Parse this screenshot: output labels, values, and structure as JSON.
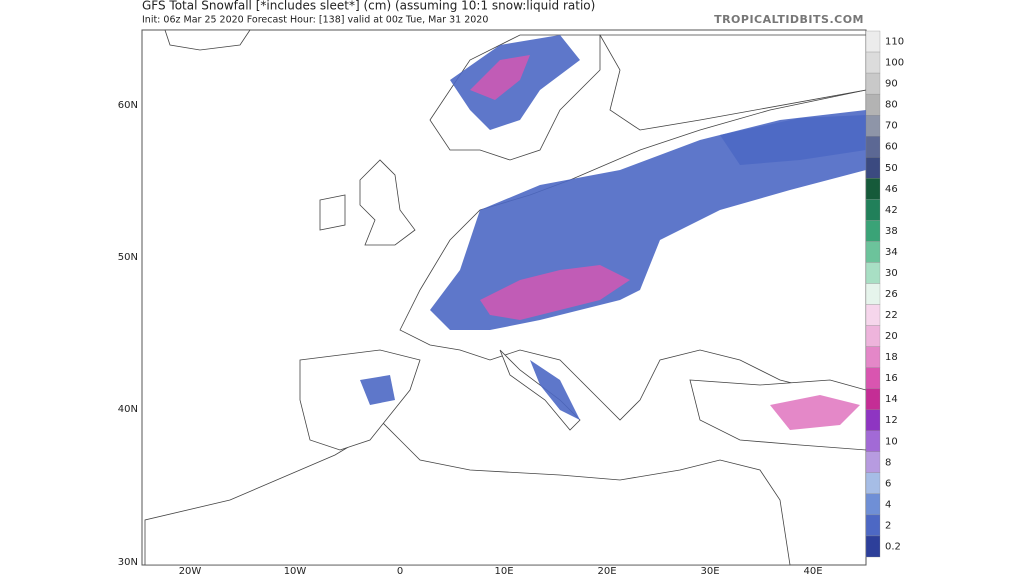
{
  "header": {
    "title": "GFS Total Snowfall [*includes sleet*] (cm) (assuming 10:1 snow:liquid ratio)",
    "subtitle": "Init: 06z Mar 25 2020   Forecast Hour: [138]   valid at 00z Tue, Mar 31 2020",
    "brand": "TROPICALTIDBITS.COM"
  },
  "map": {
    "lat_labels": [
      "60N",
      "50N",
      "40N",
      "30N"
    ],
    "lon_labels": [
      "20W",
      "10W",
      "0",
      "10E",
      "20E",
      "30E",
      "40E"
    ]
  },
  "colorbar": {
    "levels": [
      {
        "value": 110,
        "color": "#ececec"
      },
      {
        "value": 100,
        "color": "#dcdcdc"
      },
      {
        "value": 90,
        "color": "#c9c9c9"
      },
      {
        "value": 80,
        "color": "#b3b3b3"
      },
      {
        "value": 70,
        "color": "#8e95a8"
      },
      {
        "value": 60,
        "color": "#5c6894"
      },
      {
        "value": 50,
        "color": "#3b4a80"
      },
      {
        "value": 46,
        "color": "#165a3a"
      },
      {
        "value": 42,
        "color": "#21805a"
      },
      {
        "value": 38,
        "color": "#3aa377"
      },
      {
        "value": 34,
        "color": "#6cc39b"
      },
      {
        "value": 30,
        "color": "#a8dfc4"
      },
      {
        "value": 26,
        "color": "#e6f4ec"
      },
      {
        "value": 22,
        "color": "#f6d6ec"
      },
      {
        "value": 20,
        "color": "#eeb4dc"
      },
      {
        "value": 18,
        "color": "#e487c8"
      },
      {
        "value": 16,
        "color": "#d955b0"
      },
      {
        "value": 14,
        "color": "#c42d95"
      },
      {
        "value": 12,
        "color": "#8e35c2"
      },
      {
        "value": 10,
        "color": "#a26ad6"
      },
      {
        "value": 8,
        "color": "#b79be0"
      },
      {
        "value": 6,
        "color": "#a6bde6"
      },
      {
        "value": 4,
        "color": "#6f8fd6"
      },
      {
        "value": 2,
        "color": "#4d68c4"
      },
      {
        "value": 0.2,
        "color": "#2d3f9a"
      }
    ]
  }
}
